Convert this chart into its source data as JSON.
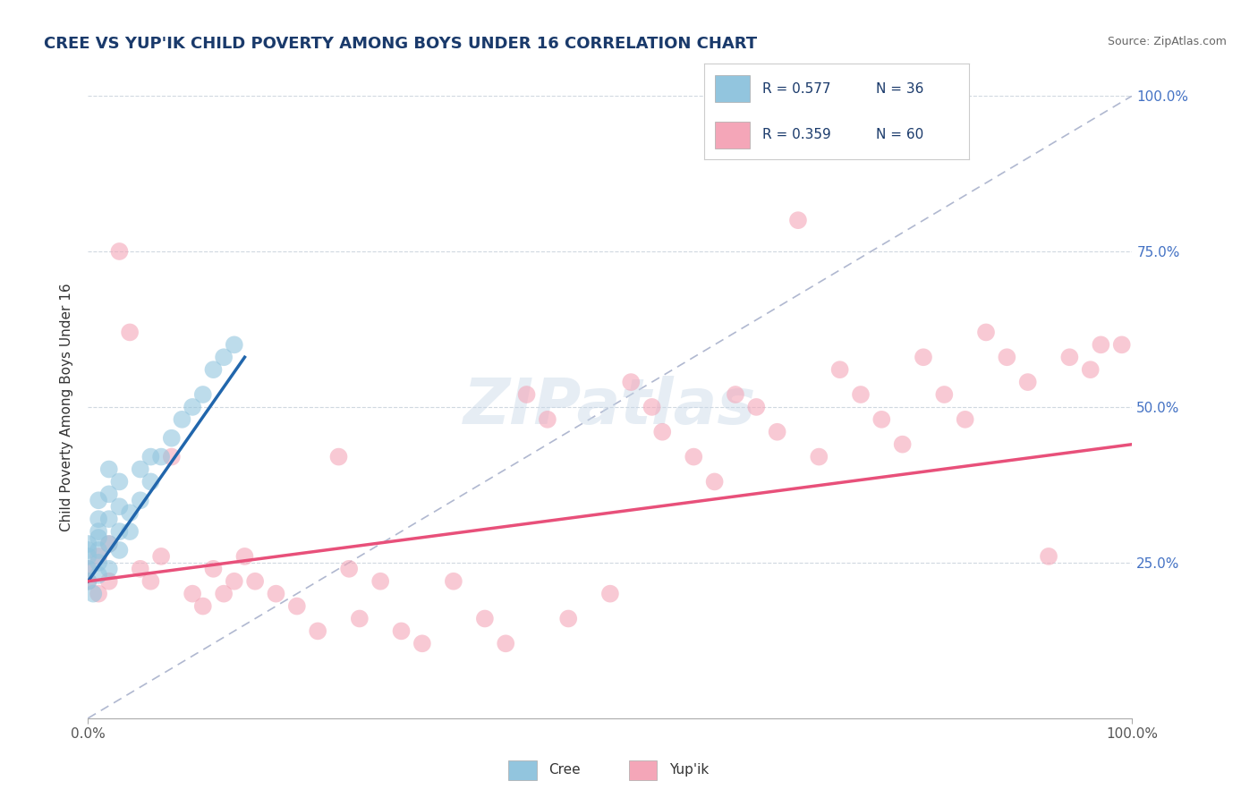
{
  "title": "CREE VS YUP'IK CHILD POVERTY AMONG BOYS UNDER 16 CORRELATION CHART",
  "source": "Source: ZipAtlas.com",
  "ylabel": "Child Poverty Among Boys Under 16",
  "xlim": [
    0.0,
    1.0
  ],
  "ylim": [
    0.0,
    1.0
  ],
  "xtick_labels": [
    "0.0%",
    "100.0%"
  ],
  "ytick_labels": [
    "25.0%",
    "50.0%",
    "75.0%",
    "100.0%"
  ],
  "ytick_positions": [
    0.25,
    0.5,
    0.75,
    1.0
  ],
  "background_color": "#ffffff",
  "legend_r_cree": "R = 0.577",
  "legend_n_cree": "N = 36",
  "legend_r_yupik": "R = 0.359",
  "legend_n_yupik": "N = 60",
  "cree_color": "#92c5de",
  "yupik_color": "#f4a6b8",
  "cree_line_color": "#2166ac",
  "yupik_line_color": "#e8507a",
  "diagonal_color": "#b0b8d0",
  "cree_scatter": [
    [
      0.0,
      0.22
    ],
    [
      0.0,
      0.24
    ],
    [
      0.0,
      0.26
    ],
    [
      0.0,
      0.27
    ],
    [
      0.0,
      0.28
    ],
    [
      0.01,
      0.23
    ],
    [
      0.01,
      0.25
    ],
    [
      0.01,
      0.27
    ],
    [
      0.01,
      0.29
    ],
    [
      0.01,
      0.3
    ],
    [
      0.01,
      0.32
    ],
    [
      0.01,
      0.35
    ],
    [
      0.02,
      0.24
    ],
    [
      0.02,
      0.28
    ],
    [
      0.02,
      0.32
    ],
    [
      0.02,
      0.36
    ],
    [
      0.02,
      0.4
    ],
    [
      0.03,
      0.27
    ],
    [
      0.03,
      0.3
    ],
    [
      0.03,
      0.34
    ],
    [
      0.03,
      0.38
    ],
    [
      0.04,
      0.3
    ],
    [
      0.04,
      0.33
    ],
    [
      0.05,
      0.35
    ],
    [
      0.05,
      0.4
    ],
    [
      0.06,
      0.38
    ],
    [
      0.06,
      0.42
    ],
    [
      0.07,
      0.42
    ],
    [
      0.08,
      0.45
    ],
    [
      0.09,
      0.48
    ],
    [
      0.1,
      0.5
    ],
    [
      0.11,
      0.52
    ],
    [
      0.12,
      0.56
    ],
    [
      0.13,
      0.58
    ],
    [
      0.005,
      0.2
    ],
    [
      0.14,
      0.6
    ]
  ],
  "yupik_scatter": [
    [
      0.0,
      0.22
    ],
    [
      0.0,
      0.24
    ],
    [
      0.01,
      0.2
    ],
    [
      0.01,
      0.26
    ],
    [
      0.02,
      0.22
    ],
    [
      0.02,
      0.28
    ],
    [
      0.03,
      0.75
    ],
    [
      0.04,
      0.62
    ],
    [
      0.05,
      0.24
    ],
    [
      0.06,
      0.22
    ],
    [
      0.07,
      0.26
    ],
    [
      0.08,
      0.42
    ],
    [
      0.1,
      0.2
    ],
    [
      0.11,
      0.18
    ],
    [
      0.12,
      0.24
    ],
    [
      0.13,
      0.2
    ],
    [
      0.14,
      0.22
    ],
    [
      0.15,
      0.26
    ],
    [
      0.16,
      0.22
    ],
    [
      0.18,
      0.2
    ],
    [
      0.2,
      0.18
    ],
    [
      0.22,
      0.14
    ],
    [
      0.24,
      0.42
    ],
    [
      0.25,
      0.24
    ],
    [
      0.26,
      0.16
    ],
    [
      0.28,
      0.22
    ],
    [
      0.3,
      0.14
    ],
    [
      0.32,
      0.12
    ],
    [
      0.35,
      0.22
    ],
    [
      0.38,
      0.16
    ],
    [
      0.4,
      0.12
    ],
    [
      0.42,
      0.52
    ],
    [
      0.44,
      0.48
    ],
    [
      0.46,
      0.16
    ],
    [
      0.5,
      0.2
    ],
    [
      0.52,
      0.54
    ],
    [
      0.54,
      0.5
    ],
    [
      0.55,
      0.46
    ],
    [
      0.58,
      0.42
    ],
    [
      0.6,
      0.38
    ],
    [
      0.62,
      0.52
    ],
    [
      0.64,
      0.5
    ],
    [
      0.66,
      0.46
    ],
    [
      0.68,
      0.8
    ],
    [
      0.7,
      0.42
    ],
    [
      0.72,
      0.56
    ],
    [
      0.74,
      0.52
    ],
    [
      0.76,
      0.48
    ],
    [
      0.78,
      0.44
    ],
    [
      0.8,
      0.58
    ],
    [
      0.82,
      0.52
    ],
    [
      0.84,
      0.48
    ],
    [
      0.86,
      0.62
    ],
    [
      0.88,
      0.58
    ],
    [
      0.9,
      0.54
    ],
    [
      0.92,
      0.26
    ],
    [
      0.94,
      0.58
    ],
    [
      0.96,
      0.56
    ],
    [
      0.97,
      0.6
    ],
    [
      0.99,
      0.6
    ]
  ],
  "cree_trendline": [
    [
      0.0,
      0.22
    ],
    [
      0.15,
      0.58
    ]
  ],
  "yupik_trendline": [
    [
      0.0,
      0.22
    ],
    [
      1.0,
      0.44
    ]
  ]
}
